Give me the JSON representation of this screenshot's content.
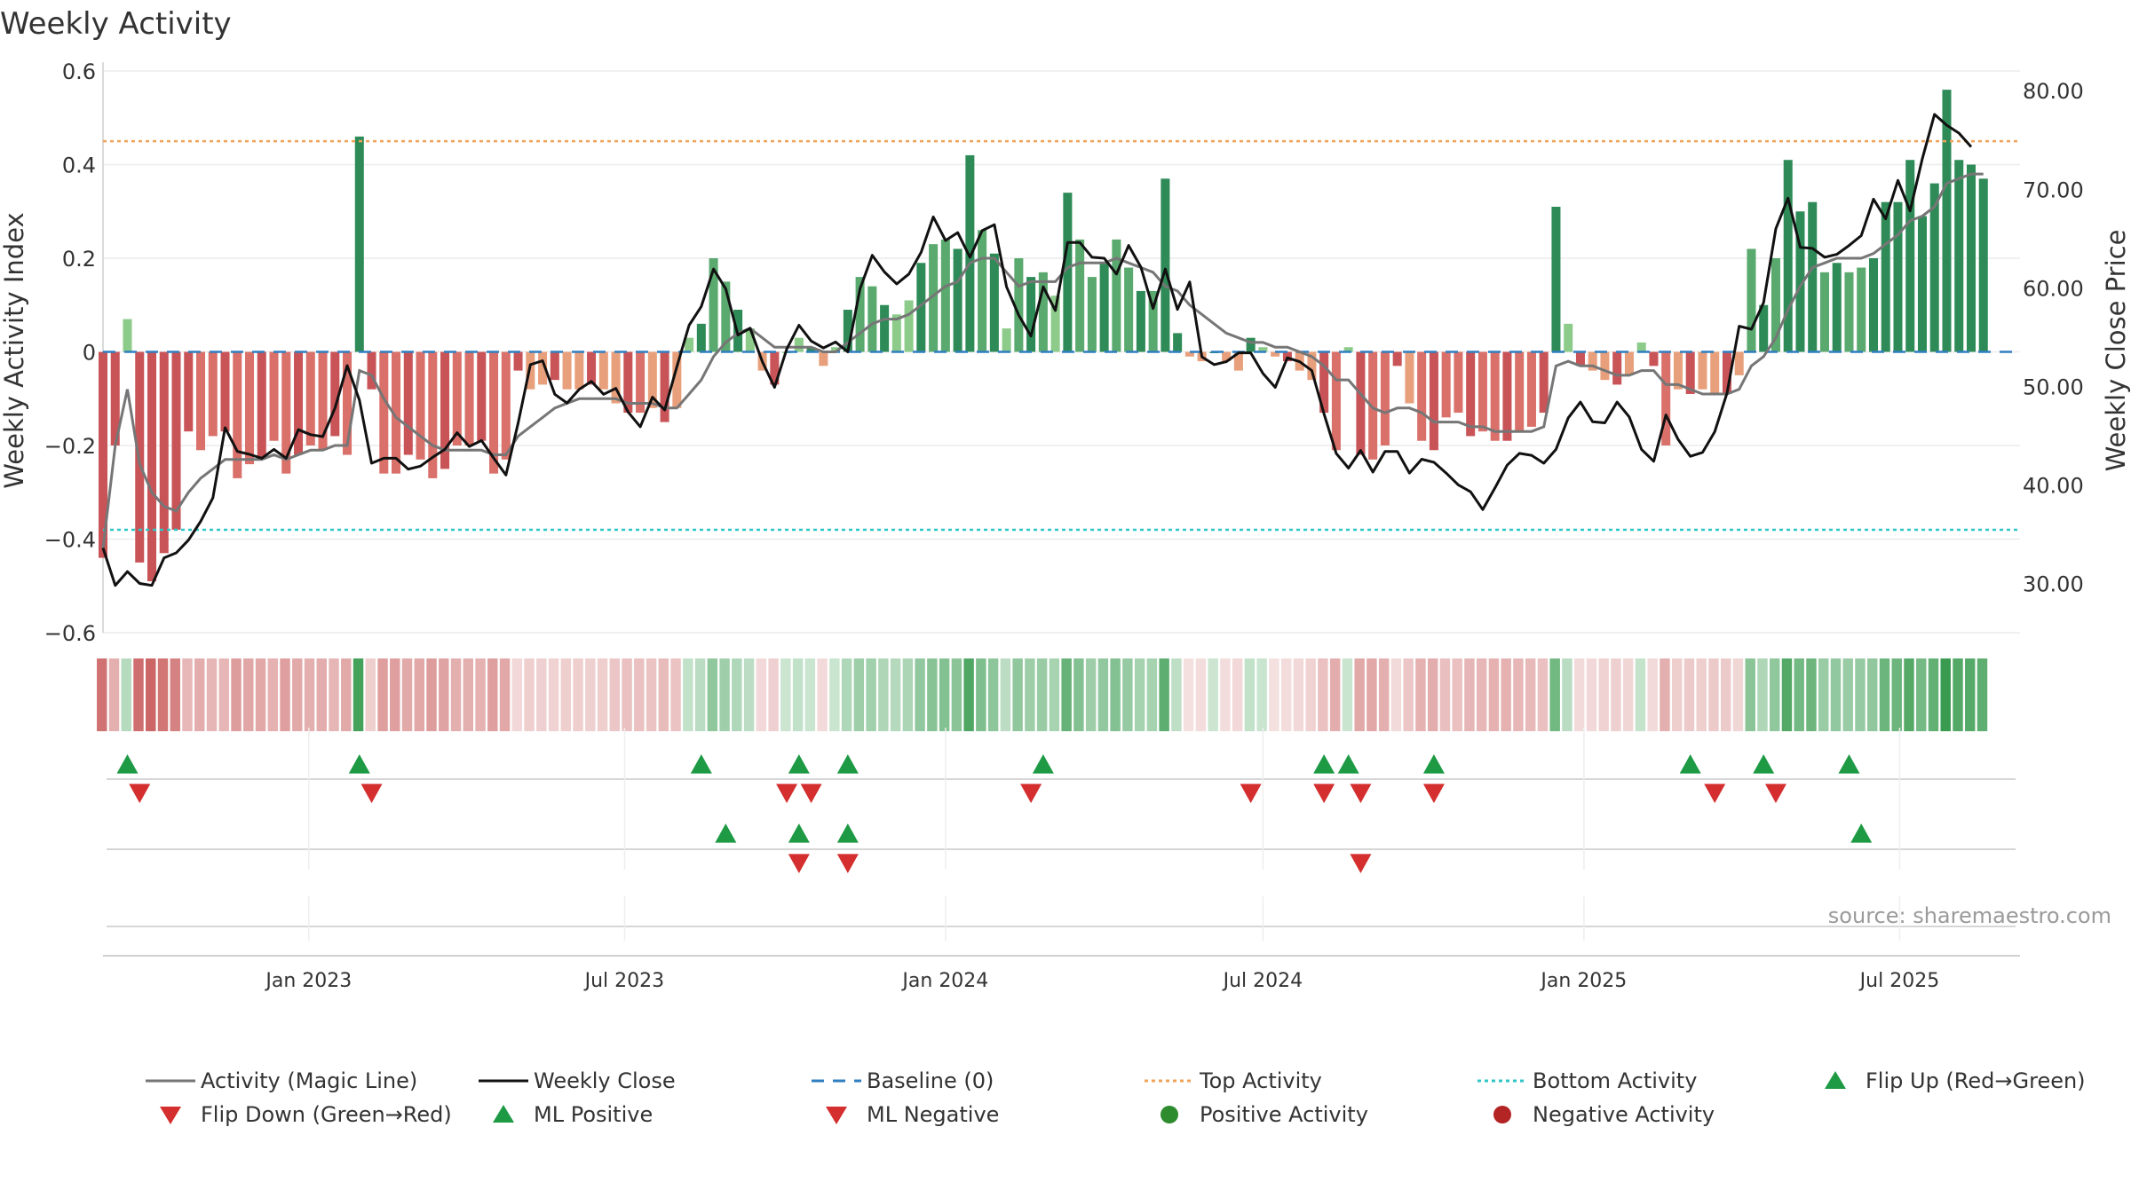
{
  "chart_data": {
    "type": "bar",
    "title": "Weekly Activity",
    "ylabel_left": "Weekly Activity Index",
    "ylabel_right": "Weekly Close Price",
    "ylim_left": [
      -0.6,
      0.6
    ],
    "ylim_right": [
      25,
      82
    ],
    "yticks_left": [
      {
        "v": 0.6,
        "label": "0.6"
      },
      {
        "v": 0.4,
        "label": "0.4"
      },
      {
        "v": 0.2,
        "label": "0.2"
      },
      {
        "v": 0,
        "label": "0"
      },
      {
        "v": -0.2,
        "label": "−0.2"
      },
      {
        "v": -0.4,
        "label": "−0.4"
      },
      {
        "v": -0.6,
        "label": "−0.6"
      }
    ],
    "yticks_right": [
      {
        "v": 80,
        "label": "80.00"
      },
      {
        "v": 70,
        "label": "70.00"
      },
      {
        "v": 60,
        "label": "60.00"
      },
      {
        "v": 50,
        "label": "50.00"
      },
      {
        "v": 40,
        "label": "40.00"
      },
      {
        "v": 30,
        "label": "30.00"
      }
    ],
    "x_start": "2022-09-05",
    "x_end": "2025-09-08",
    "xticks": [
      {
        "date": "2023-01-01",
        "label": "Jan 2023"
      },
      {
        "date": "2023-07-01",
        "label": "Jul 2023"
      },
      {
        "date": "2024-01-01",
        "label": "Jan 2024"
      },
      {
        "date": "2024-07-01",
        "label": "Jul 2024"
      },
      {
        "date": "2025-01-01",
        "label": "Jan 2025"
      },
      {
        "date": "2025-07-01",
        "label": "Jul 2025"
      }
    ],
    "top_activity": 0.45,
    "bottom_activity": -0.38,
    "baseline": 0,
    "activity": [
      -0.44,
      -0.2,
      0.07,
      -0.45,
      -0.49,
      -0.43,
      -0.38,
      -0.17,
      -0.21,
      -0.18,
      -0.17,
      -0.27,
      -0.24,
      -0.23,
      -0.19,
      -0.26,
      -0.22,
      -0.2,
      -0.21,
      -0.18,
      -0.22,
      0.46,
      -0.08,
      -0.26,
      -0.26,
      -0.22,
      -0.23,
      -0.27,
      -0.25,
      -0.2,
      -0.2,
      -0.19,
      -0.26,
      -0.23,
      -0.04,
      -0.08,
      -0.07,
      -0.06,
      -0.08,
      -0.08,
      -0.07,
      -0.08,
      -0.11,
      -0.13,
      -0.13,
      -0.12,
      -0.15,
      -0.12,
      0.03,
      0.06,
      0.2,
      0.15,
      0.09,
      0.05,
      -0.04,
      -0.07,
      0,
      0.03,
      0.01,
      -0.03,
      0.01,
      0.09,
      0.16,
      0.14,
      0.1,
      0.08,
      0.11,
      0.19,
      0.23,
      0.24,
      0.22,
      0.42,
      0.26,
      0.21,
      0.05,
      0.2,
      0.16,
      0.17,
      0.12,
      0.34,
      0.24,
      0.16,
      0.19,
      0.24,
      0.18,
      0.13,
      0.13,
      0.37,
      0.04,
      -0.01,
      -0.02,
      0,
      -0.02,
      -0.04,
      0.03,
      0.01,
      -0.01,
      -0.02,
      -0.04,
      -0.06,
      -0.13,
      -0.21,
      0.01,
      -0.22,
      -0.23,
      -0.2,
      -0.03,
      -0.11,
      -0.19,
      -0.21,
      -0.14,
      -0.13,
      -0.18,
      -0.17,
      -0.19,
      -0.19,
      -0.17,
      -0.16,
      -0.13,
      0.31,
      0.06,
      -0.03,
      -0.04,
      -0.06,
      -0.07,
      -0.05,
      0.02,
      -0.03,
      -0.2,
      -0.08,
      -0.09,
      -0.08,
      -0.09,
      -0.09,
      -0.05,
      0.22,
      0.1,
      0.2,
      0.41,
      0.3,
      0.32,
      0.17,
      0.19,
      0.17,
      0.18,
      0.2,
      0.32,
      0.32,
      0.41,
      0.29,
      0.36,
      0.56,
      0.41,
      0.4,
      0.37
    ],
    "close": [
      33.6,
      29.8,
      31.2,
      30.0,
      29.8,
      32.6,
      33.1,
      34.4,
      36.3,
      38.7,
      45.8,
      43.4,
      43.1,
      42.7,
      43.6,
      42.7,
      45.6,
      45.1,
      44.9,
      47.8,
      52.1,
      48.6,
      42.2,
      42.7,
      42.7,
      41.6,
      41.9,
      42.8,
      43.6,
      45.3,
      43.9,
      44.5,
      42.7,
      41.0,
      46.3,
      52.2,
      52.6,
      49.2,
      48.3,
      49.7,
      50.5,
      49.2,
      49.8,
      47.4,
      45.9,
      48.9,
      47.6,
      52.0,
      56.2,
      58.1,
      61.9,
      59.9,
      55.2,
      55.9,
      52.5,
      49.9,
      53.8,
      56.2,
      54.6,
      53.9,
      54.5,
      53.5,
      59.9,
      63.3,
      61.6,
      60.4,
      61.4,
      63.6,
      67.2,
      64.8,
      65.6,
      63.1,
      65.8,
      66.4,
      60.1,
      57.2,
      55.1,
      60.1,
      57.7,
      64.6,
      64.6,
      63.1,
      63.0,
      61.4,
      64.3,
      62.1,
      57.9,
      61.9,
      57.8,
      60.6,
      53.0,
      52.2,
      52.5,
      53.4,
      53.4,
      51.3,
      49.9,
      52.9,
      52.5,
      51.6,
      47.2,
      43.2,
      41.7,
      43.5,
      41.3,
      43.4,
      43.4,
      41.2,
      42.6,
      42.3,
      41.2,
      40.0,
      39.3,
      37.5,
      39.7,
      42.0,
      43.2,
      43.0,
      42.2,
      43.6,
      46.8,
      48.4,
      46.4,
      46.3,
      48.4,
      46.9,
      43.6,
      42.4,
      47.1,
      44.6,
      42.9,
      43.3,
      45.4,
      49.3,
      56.1,
      55.8,
      58.5,
      66.0,
      69.1,
      64.1,
      64.0,
      63.1,
      63.4,
      64.3,
      65.3,
      69.0,
      67.0,
      70.9,
      67.8,
      73.1,
      77.6,
      76.5,
      75.7,
      74.3
    ],
    "magic_line": [
      -0.42,
      -0.2,
      -0.08,
      -0.24,
      -0.3,
      -0.33,
      -0.34,
      -0.3,
      -0.27,
      -0.25,
      -0.23,
      -0.23,
      -0.23,
      -0.23,
      -0.22,
      -0.23,
      -0.22,
      -0.21,
      -0.21,
      -0.2,
      -0.2,
      -0.04,
      -0.05,
      -0.1,
      -0.14,
      -0.16,
      -0.18,
      -0.2,
      -0.21,
      -0.21,
      -0.21,
      -0.21,
      -0.22,
      -0.22,
      -0.18,
      -0.16,
      -0.14,
      -0.12,
      -0.11,
      -0.1,
      -0.1,
      -0.1,
      -0.1,
      -0.11,
      -0.11,
      -0.11,
      -0.12,
      -0.12,
      -0.09,
      -0.06,
      -0.01,
      0.02,
      0.04,
      0.05,
      0.03,
      0.01,
      0.01,
      0.01,
      0.01,
      0.0,
      0.0,
      0.02,
      0.04,
      0.06,
      0.07,
      0.07,
      0.08,
      0.1,
      0.12,
      0.14,
      0.15,
      0.19,
      0.2,
      0.2,
      0.17,
      0.14,
      0.15,
      0.15,
      0.15,
      0.18,
      0.19,
      0.19,
      0.19,
      0.2,
      0.19,
      0.18,
      0.17,
      0.14,
      0.13,
      0.1,
      0.08,
      0.06,
      0.04,
      0.03,
      0.02,
      0.02,
      0.01,
      0.01,
      0.0,
      -0.01,
      -0.03,
      -0.06,
      -0.06,
      -0.09,
      -0.12,
      -0.13,
      -0.12,
      -0.12,
      -0.13,
      -0.15,
      -0.15,
      -0.15,
      -0.16,
      -0.16,
      -0.17,
      -0.17,
      -0.17,
      -0.17,
      -0.16,
      -0.03,
      -0.02,
      -0.03,
      -0.03,
      -0.04,
      -0.05,
      -0.05,
      -0.04,
      -0.04,
      -0.07,
      -0.07,
      -0.08,
      -0.09,
      -0.09,
      -0.09,
      -0.08,
      -0.03,
      -0.01,
      0.03,
      0.09,
      0.14,
      0.18,
      0.19,
      0.2,
      0.2,
      0.2,
      0.21,
      0.23,
      0.25,
      0.28,
      0.29,
      0.31,
      0.36,
      0.37,
      0.38,
      0.38
    ],
    "flip_up": [
      "2022-09-19",
      "2023-01-30",
      "2023-08-14",
      "2023-10-09",
      "2023-11-06",
      "2024-02-26",
      "2024-08-05",
      "2024-08-19",
      "2024-10-07",
      "2025-03-03",
      "2025-04-14",
      "2025-06-02"
    ],
    "flip_down": [
      "2022-09-26",
      "2023-02-06",
      "2023-10-02",
      "2023-10-16",
      "2024-02-19",
      "2024-06-24",
      "2024-08-05",
      "2024-08-26",
      "2024-10-07",
      "2025-03-17",
      "2025-04-21"
    ],
    "ml_positive": [
      "2023-08-28",
      "2023-10-09",
      "2023-11-06",
      "2025-06-09"
    ],
    "ml_negative": [
      "2023-10-09",
      "2023-11-06",
      "2024-08-26"
    ],
    "source_text": "source: sharemaestro.com",
    "legend": [
      {
        "label": "Activity (Magic Line)",
        "symbol": "line",
        "color": "#767676"
      },
      {
        "label": "Weekly Close",
        "symbol": "line",
        "color": "#111111"
      },
      {
        "label": "Baseline (0)",
        "symbol": "dash",
        "color": "#2f7fc1"
      },
      {
        "label": "Top Activity",
        "symbol": "dot-line",
        "color": "#f0a35a"
      },
      {
        "label": "Bottom Activity",
        "symbol": "dot-line",
        "color": "#2ec6c6"
      },
      {
        "label": "Flip Up (Red→Green)",
        "symbol": "triangle-up",
        "color": "#1e9a45"
      },
      {
        "label": "Flip Down (Green→Red)",
        "symbol": "triangle-down",
        "color": "#d42e2e"
      },
      {
        "label": "ML Positive",
        "symbol": "triangle-up",
        "color": "#1e9a45"
      },
      {
        "label": "ML Negative",
        "symbol": "triangle-down",
        "color": "#d42e2e"
      },
      {
        "label": "Positive Activity",
        "symbol": "circle",
        "color": "#2e8b2e"
      },
      {
        "label": "Negative Activity",
        "symbol": "circle",
        "color": "#b32424"
      }
    ],
    "colors": {
      "pos_strong": "#2e8b57",
      "pos_mid": "#5aa96e",
      "pos_light": "#8ccb8a",
      "neg_strong": "#c85458",
      "neg_mid": "#d9706a",
      "neg_light": "#e8a07c",
      "gray_line": "#767676",
      "black_line": "#111111",
      "baseline": "#2f7fc1",
      "top": "#f0a35a",
      "bottom": "#2ec6c6",
      "up": "#1e9a45",
      "down": "#d42e2e"
    }
  }
}
